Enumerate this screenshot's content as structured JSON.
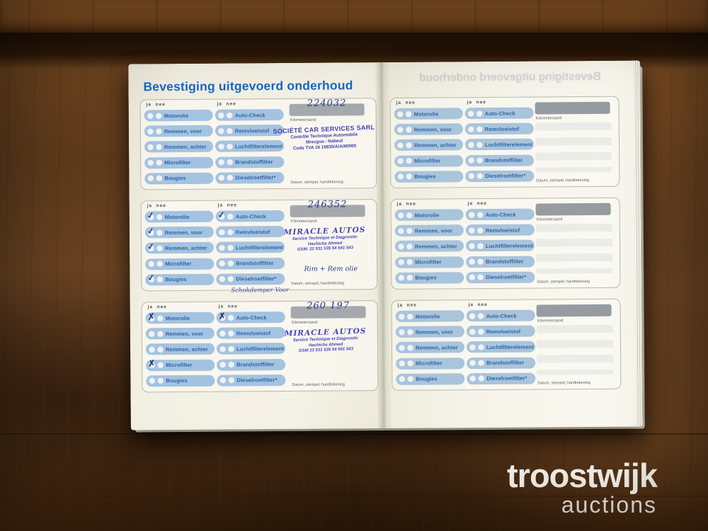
{
  "booklet": {
    "title": "Bevestiging uitgevoerd onderhoud",
    "ghost_title": "Bevestiging uitgevoerd onderhoud",
    "header_ja": "ja",
    "header_nee": "nee",
    "items_left": [
      "Motorolie",
      "Remmen, voor",
      "Remmen, achter",
      "Microfilter",
      "Bougies"
    ],
    "items_right": [
      "Auto-Check",
      "Remvloeistof",
      "Luchtfilterelement",
      "Brandstoffilter",
      "Dieselroetfilter*"
    ],
    "labels": {
      "kilometerstand": "Kilometerstand",
      "datum": "Datum, stempel, handtekening"
    },
    "blocks": [
      {
        "side": "left",
        "km": "224032",
        "checks_left": [],
        "checks_right": [],
        "check_glyph": "",
        "stamp_class": "societe",
        "stamp": [
          "SOCIÉTÉ CAR SERVICES SARL",
          "Contrôle Technique Automobile",
          "Mrezgua - Nabeul",
          "Code TVA 16 19835/A/A/M/000"
        ],
        "note": "",
        "note2": ""
      },
      {
        "side": "left",
        "km": "246352",
        "checks_left": [
          0,
          1,
          2,
          4
        ],
        "checks_right": [
          0
        ],
        "check_glyph": "✓",
        "stamp_class": "miracle",
        "stamp": [
          "MIRACLE AUTOS",
          "Service Technique et Diagnostic",
          "Hachicha Ahmed",
          "GSM: 22 531 535 54 541 543"
        ],
        "note": "Rim + Rem olie",
        "note2": "Schokdemper  Voor"
      },
      {
        "side": "left",
        "km": "260 197",
        "checks_left": [
          0,
          3
        ],
        "checks_right": [
          0
        ],
        "check_glyph": "✗",
        "stamp_class": "miracle",
        "stamp": [
          "MIRACLE AUTOS",
          "Service Technique et Diagnostic",
          "Hachicha Ahmed",
          "GSM 23 531 535 54 541 543"
        ],
        "note": "",
        "note2": ""
      },
      {
        "side": "right",
        "km": "",
        "checks_left": [],
        "checks_right": [],
        "check_glyph": "",
        "stamp_class": "",
        "stamp": [],
        "note": "",
        "note2": ""
      },
      {
        "side": "right",
        "km": "",
        "checks_left": [],
        "checks_right": [],
        "check_glyph": "",
        "stamp_class": "",
        "stamp": [],
        "note": "",
        "note2": ""
      },
      {
        "side": "right",
        "km": "",
        "checks_left": [],
        "checks_right": [],
        "check_glyph": "",
        "stamp_class": "",
        "stamp": [],
        "note": "",
        "note2": ""
      }
    ]
  },
  "watermark": {
    "line1": "troostwijk",
    "line2": "auctions"
  },
  "colors": {
    "title_blue": "#1667c6",
    "row_blue": "#a4c3e0",
    "row_text_blue": "#2b64a8",
    "ink_blue": "#2a3a8e",
    "stamp_violet": "#3f3fae",
    "km_bar_gray": "#a5a9ad",
    "page_cream": "#f2efe3",
    "wood_brown": "#6b4423"
  }
}
